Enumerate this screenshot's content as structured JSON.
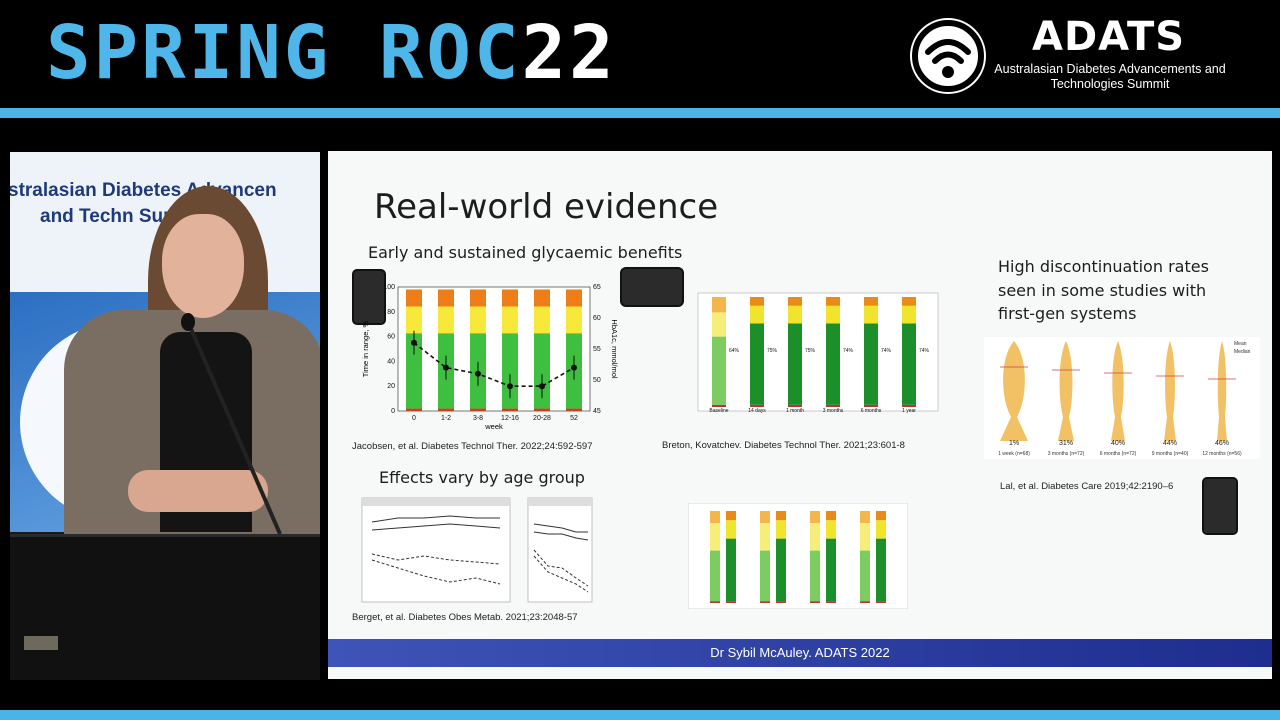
{
  "header": {
    "title_text": "SPRING ROC",
    "title_number": "22",
    "brand": "ADATS",
    "brand_subtitle": "Australasian Diabetes Advancements and Technologies Summit",
    "stripe_color": "#4ab3e8"
  },
  "speaker_banner": {
    "line1": "stralasian Diabetes Advancen",
    "line2": "and Techn        Summit"
  },
  "slide": {
    "title": "Real-world evidence",
    "subtitle_left": "Early and sustained glycaemic benefits",
    "subtitle_age": "Effects vary by age group",
    "right_text": "High discontinuation rates seen in some studies with first-gen systems",
    "footer": "Dr Sybil McAuley. ADATS 2022"
  },
  "figures": {
    "jacobsen": {
      "citation": "Jacobsen, et al. Diabetes Technol Ther. 2022;24:592-597",
      "xlabel": "week",
      "ylabel_left": "Time in range, %",
      "ylabel_right": "HbA1c, mmol/mol",
      "x_ticks": [
        "0",
        "1-2",
        "3-8",
        "12-16",
        "20-28",
        "52"
      ],
      "y_ticks_left": [
        "0",
        "20",
        "40",
        "60",
        "80",
        "100"
      ],
      "y_ticks_right": [
        "45",
        "50",
        "55",
        "60",
        "65"
      ],
      "hba1c": [
        56,
        52,
        51,
        49,
        49,
        52
      ],
      "stack_colors": [
        "#d23b1e",
        "#3fbf3f",
        "#f7e83a",
        "#ee7e1a"
      ]
    },
    "breton": {
      "citation": "Breton, Kovatchev. Diabetes Technol Ther. 2021;23:601-8",
      "categories": [
        "Baseline",
        "14 days",
        "1 month",
        "3 months",
        "6 months",
        "1 year"
      ],
      "tir_labels": [
        "64%",
        "75%",
        "75%",
        "74%",
        "74%",
        "74%"
      ]
    },
    "berget": {
      "citation": "Berget, et al. Diabetes Obes Metab. 2021;23:2048-57"
    },
    "lal": {
      "citation": "Lal, et al. Diabetes Care 2019;42:2190–6",
      "categories": [
        "1 week (n=68)",
        "3 months (n=72)",
        "6 months (n=72)",
        "9 months (n=40)",
        "12 months (n=56)"
      ],
      "discontinuation": [
        "1%",
        "31%",
        "40%",
        "44%",
        "46%"
      ],
      "legend": [
        "Mean",
        "Median"
      ]
    }
  }
}
